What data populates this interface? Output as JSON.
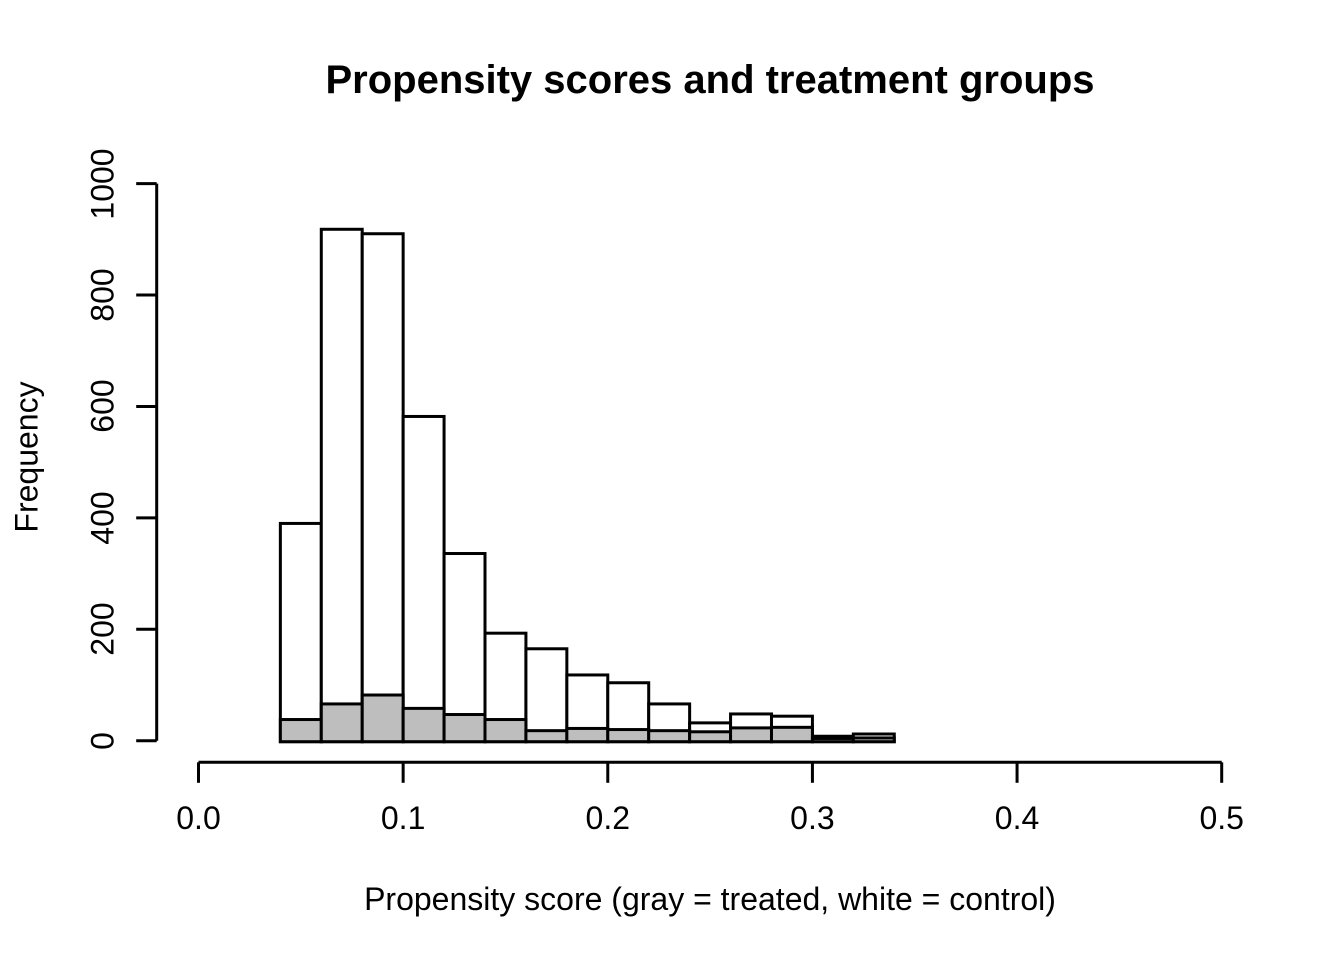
{
  "chart_data": {
    "type": "bar",
    "subtype": "overlaid_histogram",
    "title": "Propensity scores and treatment groups",
    "xlabel": "Propensity score (gray = treated, white = control)",
    "ylabel": "Frequency",
    "xlim": [
      0.0,
      0.5
    ],
    "ylim": [
      0,
      1000
    ],
    "grid": false,
    "legend_position": "none (encoded in x-axis label)",
    "x_ticks": [
      {
        "value": 0.0,
        "label": "0.0"
      },
      {
        "value": 0.1,
        "label": "0.1"
      },
      {
        "value": 0.2,
        "label": "0.2"
      },
      {
        "value": 0.3,
        "label": "0.3"
      },
      {
        "value": 0.4,
        "label": "0.4"
      },
      {
        "value": 0.5,
        "label": "0.5"
      }
    ],
    "y_ticks": [
      {
        "value": 0,
        "label": "0"
      },
      {
        "value": 200,
        "label": "200"
      },
      {
        "value": 400,
        "label": "400"
      },
      {
        "value": 600,
        "label": "600"
      },
      {
        "value": 800,
        "label": "800"
      },
      {
        "value": 1000,
        "label": "1000"
      }
    ],
    "bins": {
      "start": 0.04,
      "width": 0.02,
      "count": 15,
      "end": 0.34
    },
    "series": [
      {
        "name": "control (white)",
        "fill": "#FFFFFF",
        "stroke": "#000000",
        "values": [
          390,
          918,
          910,
          582,
          336,
          193,
          165,
          118,
          104,
          66,
          32,
          48,
          44,
          8,
          12
        ]
      },
      {
        "name": "treated (gray)",
        "fill": "#BEBEBE",
        "stroke": "#000000",
        "values": [
          38,
          66,
          82,
          58,
          47,
          38,
          18,
          22,
          20,
          18,
          16,
          23,
          24,
          4,
          5
        ]
      }
    ],
    "colors": {
      "background": "#FFFFFF",
      "axis": "#000000",
      "text": "#000000",
      "control_fill": "#FFFFFF",
      "treated_fill": "#BEBEBE",
      "bar_border": "#000000"
    }
  }
}
